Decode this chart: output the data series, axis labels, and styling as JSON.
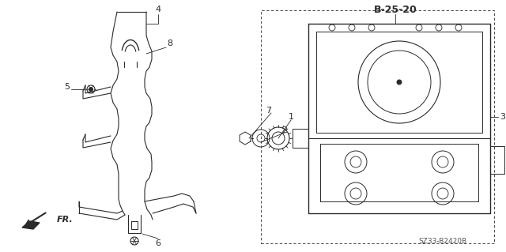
{
  "bg_color": "#ffffff",
  "line_color": "#2a2a2a",
  "title_label": "B-25-20",
  "part_number": "SZ33-B2420B",
  "fig_w": 6.4,
  "fig_h": 3.19,
  "dpi": 100
}
